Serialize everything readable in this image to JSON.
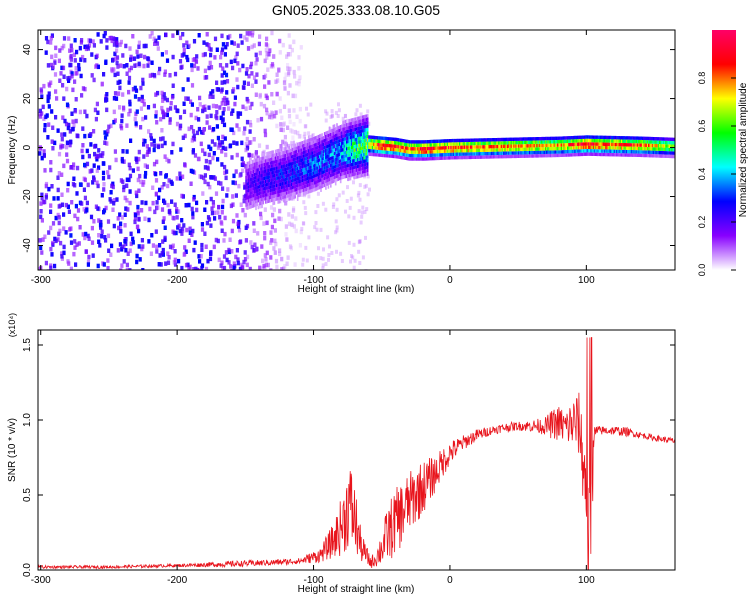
{
  "title": "GN05.2025.333.08.10.G05",
  "colors": {
    "snr_line": "#e8141c",
    "axis": "#000000",
    "background": "#ffffff"
  },
  "colorbar": {
    "label": "Normalized spectral amplitude",
    "ticks": [
      "0.0",
      "0.2",
      "0.4",
      "0.6",
      "0.8"
    ],
    "tick_values": [
      0.0,
      0.2,
      0.4,
      0.6,
      0.8
    ],
    "range": [
      0,
      1
    ],
    "colormap": [
      "#ffffff",
      "#8800ff",
      "#0000ff",
      "#00ffff",
      "#00ff00",
      "#ffff00",
      "#ff0000",
      "#ff0066"
    ]
  },
  "chart_data": [
    {
      "type": "heatmap",
      "xlabel": "Height of straight line (km)",
      "ylabel": "Frequency (Hz)",
      "xlim": [
        -302,
        165
      ],
      "ylim": [
        -50,
        48
      ],
      "x_ticks": [
        "-300",
        "-200",
        "-100",
        "0",
        "100"
      ],
      "x_tick_values": [
        -300,
        -200,
        -100,
        0,
        100
      ],
      "y_ticks": [
        "40",
        "20",
        "0",
        "-20",
        "-40"
      ],
      "y_tick_values": [
        40,
        20,
        0,
        -20,
        -40
      ],
      "ridge": {
        "x": [
          -150,
          -140,
          -120,
          -100,
          -80,
          -60,
          -50,
          -40,
          -30,
          -20,
          0,
          40,
          80,
          100,
          140,
          165
        ],
        "frequency": [
          -15,
          -13,
          -10,
          -6,
          -1,
          2,
          1.5,
          1,
          0,
          0,
          0.5,
          1,
          1.5,
          2,
          1.5,
          1
        ],
        "amplitude": [
          0.2,
          0.25,
          0.3,
          0.35,
          0.4,
          0.7,
          0.95,
          0.9,
          0.85,
          0.9,
          0.85,
          0.8,
          0.75,
          0.9,
          0.8,
          0.6
        ]
      },
      "noise_region": {
        "x_range": [
          -302,
          -110
        ],
        "frequency_range": [
          -50,
          48
        ],
        "amplitude": [
          0.1,
          0.3
        ]
      }
    },
    {
      "type": "line",
      "xlabel": "Height of straight line (km)",
      "ylabel": "SNR (10 * v/v)",
      "y_scale_label": "(x10⁴)",
      "xlim": [
        -302,
        165
      ],
      "ylim": [
        0,
        1.6
      ],
      "x_ticks": [
        "-300",
        "-200",
        "-100",
        "0",
        "100"
      ],
      "x_tick_values": [
        -300,
        -200,
        -100,
        0,
        100
      ],
      "y_ticks": [
        "0.0",
        "0.5",
        "1.0",
        "1.5"
      ],
      "y_tick_values": [
        0,
        0.5,
        1.0,
        1.5
      ],
      "series": [
        {
          "x": [
            -302,
            -250,
            -200,
            -160,
            -130,
            -110,
            -95,
            -85,
            -78,
            -74,
            -70,
            -65,
            -58,
            -54,
            -50,
            -45,
            -40,
            -35,
            -30,
            -25,
            -20,
            -15,
            -10,
            -5,
            0,
            10,
            20,
            30,
            40,
            50,
            60,
            70,
            75,
            80,
            85,
            90,
            95,
            100,
            102,
            104,
            106,
            110,
            120,
            130,
            140,
            150,
            165
          ],
          "y": [
            0.02,
            0.02,
            0.03,
            0.04,
            0.05,
            0.06,
            0.1,
            0.2,
            0.32,
            0.45,
            0.35,
            0.15,
            0.05,
            0.08,
            0.15,
            0.25,
            0.32,
            0.38,
            0.45,
            0.5,
            0.55,
            0.6,
            0.65,
            0.72,
            0.78,
            0.85,
            0.9,
            0.93,
            0.95,
            0.96,
            0.96,
            0.96,
            0.97,
            0.98,
            0.95,
            0.98,
            0.97,
            0.5,
            0.15,
            0.5,
            0.92,
            0.93,
            0.93,
            0.92,
            0.9,
            0.88,
            0.86
          ],
          "spread": [
            0.01,
            0.01,
            0.01,
            0.02,
            0.02,
            0.02,
            0.05,
            0.12,
            0.22,
            0.3,
            0.25,
            0.1,
            0.04,
            0.06,
            0.12,
            0.2,
            0.22,
            0.22,
            0.2,
            0.2,
            0.18,
            0.15,
            0.12,
            0.1,
            0.08,
            0.05,
            0.04,
            0.03,
            0.03,
            0.03,
            0.04,
            0.06,
            0.1,
            0.12,
            0.12,
            0.18,
            0.22,
            0.35,
            0.4,
            0.3,
            0.05,
            0.03,
            0.03,
            0.03,
            0.02,
            0.02,
            0.02
          ]
        }
      ]
    }
  ]
}
